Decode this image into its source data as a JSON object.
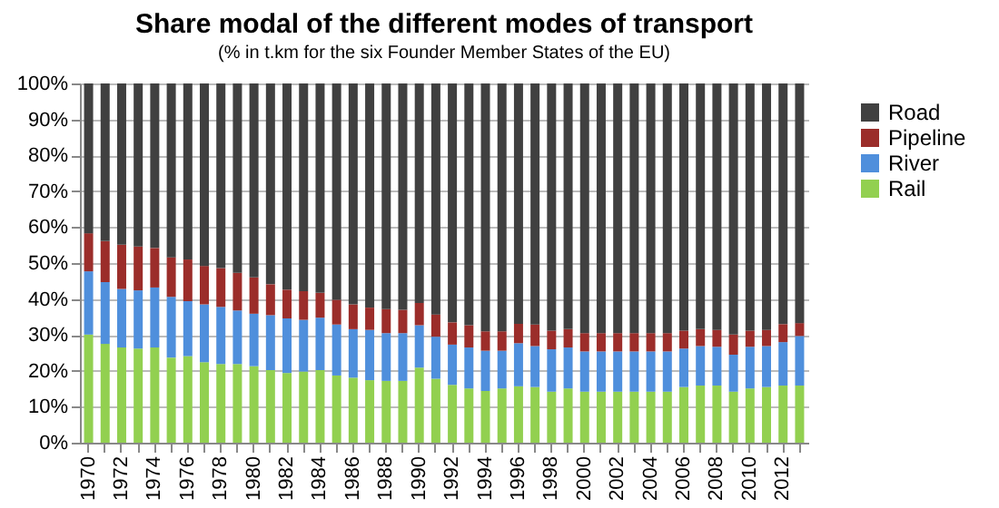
{
  "chart_data": {
    "type": "bar",
    "stacked": true,
    "title": "Share modal of the different modes of transport",
    "subtitle": "(% in t.km for the six Founder Member States of the EU)",
    "categories": [
      "1970",
      null,
      "1972",
      null,
      "1974",
      null,
      "1976",
      null,
      "1978",
      null,
      "1980",
      null,
      "1982",
      null,
      "1984",
      null,
      "1986",
      null,
      "1988",
      null,
      "1990",
      null,
      "1992",
      null,
      "1994",
      null,
      "1996",
      null,
      "1998",
      null,
      "2000",
      null,
      "2002",
      null,
      "2004",
      null,
      "2006",
      null,
      "2008",
      null,
      "2010",
      null,
      "2012",
      null
    ],
    "series": [
      {
        "name": "Rail",
        "color": "#92d050",
        "values": [
          30.1,
          27.5,
          26.5,
          26.2,
          26.5,
          23.7,
          24.1,
          22.4,
          21.9,
          21.9,
          21.3,
          20.2,
          19.4,
          19.8,
          20.2,
          18.7,
          18.1,
          17.4,
          17.2,
          17.2,
          20.9,
          17.8,
          16.1,
          15.1,
          14.4,
          15.1,
          15.7,
          15.5,
          14.2,
          15.1,
          14.2,
          14.2,
          14.2,
          14.2,
          14.2,
          14.2,
          15.5,
          15.9,
          15.9,
          14.2,
          15.1,
          15.5,
          15.9,
          15.9
        ]
      },
      {
        "name": "River",
        "color": "#4f8fdc",
        "values": [
          17.6,
          17.2,
          16.3,
          16.2,
          16.7,
          16.9,
          15.3,
          16.1,
          15.9,
          14.9,
          14.6,
          15.3,
          15.2,
          14.4,
          14.6,
          14.2,
          13.5,
          14.0,
          13.3,
          13.3,
          11.8,
          11.7,
          11.2,
          11.4,
          11.2,
          10.5,
          12.0,
          11.4,
          11.8,
          11.4,
          11.2,
          11.2,
          11.2,
          11.2,
          11.2,
          11.2,
          10.7,
          11.0,
          10.8,
          10.3,
          11.6,
          11.4,
          12.1,
          13.8
        ]
      },
      {
        "name": "Pipeline",
        "color": "#9b2d2a",
        "values": [
          10.6,
          11.4,
          12.3,
          12.2,
          11.0,
          11.0,
          11.6,
          10.7,
          10.8,
          10.5,
          10.1,
          8.6,
          8.0,
          8.0,
          6.9,
          6.9,
          6.9,
          6.2,
          6.7,
          6.5,
          6.2,
          6.2,
          6.2,
          6.2,
          5.4,
          5.4,
          5.4,
          6.0,
          5.2,
          5.1,
          5.1,
          5.1,
          5.1,
          5.1,
          5.1,
          5.1,
          5.0,
          4.7,
          4.7,
          5.6,
          4.5,
          4.5,
          5.0,
          3.6
        ]
      },
      {
        "name": "Road",
        "color": "#404040",
        "values": [
          41.7,
          43.9,
          44.9,
          45.4,
          45.8,
          48.4,
          49.0,
          50.8,
          51.4,
          52.7,
          54.0,
          55.9,
          57.4,
          57.8,
          58.3,
          60.2,
          61.5,
          62.4,
          62.8,
          63.0,
          61.1,
          64.3,
          66.5,
          67.3,
          69.0,
          69.0,
          66.9,
          67.1,
          68.8,
          68.4,
          69.5,
          69.5,
          69.5,
          69.5,
          69.5,
          69.5,
          68.8,
          68.4,
          68.6,
          69.9,
          68.8,
          68.6,
          67.0,
          66.7
        ]
      }
    ],
    "ylim": [
      0,
      100
    ],
    "yticks": [
      {
        "value": 0,
        "label": "0%"
      },
      {
        "value": 10,
        "label": "10%"
      },
      {
        "value": 20,
        "label": "20%"
      },
      {
        "value": 30,
        "label": "30%"
      },
      {
        "value": 40,
        "label": "40%"
      },
      {
        "value": 50,
        "label": "50%"
      },
      {
        "value": 60,
        "label": "60%"
      },
      {
        "value": 70,
        "label": "70%"
      },
      {
        "value": 80,
        "label": "80%"
      },
      {
        "value": 90,
        "label": "90%"
      },
      {
        "value": 100,
        "label": "100%"
      }
    ],
    "grid": "y",
    "legend": "right"
  }
}
